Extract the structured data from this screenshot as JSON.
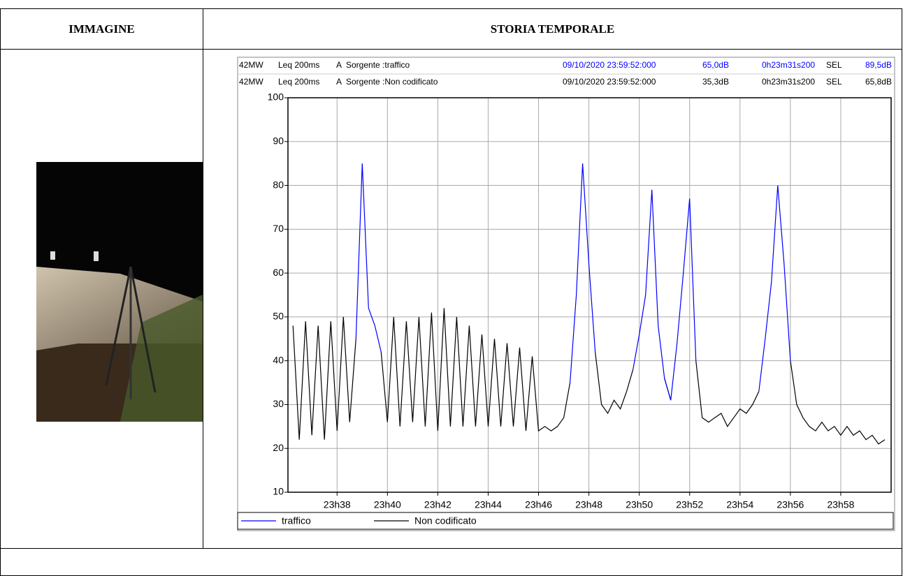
{
  "table": {
    "headers": [
      "IMMAGINE",
      "STORIA TEMPORALE"
    ]
  },
  "chart_data": {
    "type": "line",
    "info": [
      [
        "42MW",
        "Leq 200ms",
        "A",
        "Sorgente :traffico",
        "09/10/2020 23:59:52:000",
        "65,0dB",
        "0h23m31s200",
        "SEL",
        "89,5dB"
      ],
      [
        "42MW",
        "Leq 200ms",
        "A",
        "Sorgente :Non codificato",
        "09/10/2020 23:59:52:000",
        "35,3dB",
        "0h23m31s200",
        "SEL",
        "65,8dB"
      ]
    ],
    "x": [
      36.25,
      36.5,
      36.75,
      37,
      37.25,
      37.5,
      37.75,
      38,
      38.25,
      38.5,
      38.75,
      39,
      39.25,
      39.5,
      39.75,
      40,
      40.25,
      40.5,
      40.75,
      41,
      41.25,
      41.5,
      41.75,
      42,
      42.25,
      42.5,
      42.75,
      43,
      43.25,
      43.5,
      43.75,
      44,
      44.25,
      44.5,
      44.75,
      45,
      45.25,
      45.5,
      45.75,
      46,
      46.25,
      46.5,
      46.75,
      47,
      47.25,
      47.5,
      47.75,
      48,
      48.25,
      48.5,
      48.75,
      49,
      49.25,
      49.5,
      49.75,
      50,
      50.25,
      50.5,
      50.75,
      51,
      51.25,
      51.5,
      51.75,
      52,
      52.25,
      52.5,
      52.75,
      53,
      53.25,
      53.5,
      53.75,
      54,
      54.25,
      54.5,
      54.75,
      55,
      55.25,
      55.5,
      55.75,
      56,
      56.25,
      56.5,
      56.75,
      57,
      57.25,
      57.5,
      57.75,
      58,
      58.25,
      58.5,
      58.75,
      59,
      59.25,
      59.5,
      59.75
    ],
    "series": [
      {
        "name": "traffico",
        "color": "#0000ff",
        "values": [
          null,
          null,
          null,
          null,
          null,
          null,
          null,
          null,
          null,
          null,
          45,
          85,
          52,
          48,
          42,
          null,
          null,
          null,
          null,
          null,
          null,
          null,
          null,
          null,
          null,
          null,
          null,
          null,
          null,
          null,
          null,
          null,
          null,
          null,
          null,
          null,
          null,
          null,
          null,
          null,
          null,
          null,
          null,
          null,
          35,
          55,
          85,
          62,
          42,
          null,
          null,
          null,
          null,
          null,
          38,
          46,
          55,
          79,
          48,
          36,
          31,
          44,
          60,
          77,
          40,
          null,
          null,
          null,
          null,
          null,
          null,
          null,
          null,
          null,
          33,
          45,
          58,
          80,
          62,
          40,
          null,
          null,
          null,
          null,
          null,
          null,
          null,
          null,
          null,
          null,
          null,
          null,
          null,
          null,
          null
        ]
      },
      {
        "name": "Non codificato",
        "color": "#000000",
        "values": [
          48,
          22,
          49,
          23,
          48,
          22,
          49,
          24,
          50,
          26,
          45,
          null,
          null,
          null,
          42,
          26,
          50,
          25,
          49,
          26,
          50,
          25,
          51,
          24,
          52,
          25,
          50,
          25,
          48,
          25,
          46,
          25,
          45,
          25,
          44,
          25,
          43,
          24,
          41,
          24,
          25,
          24,
          25,
          27,
          35,
          null,
          null,
          null,
          42,
          30,
          28,
          31,
          29,
          33,
          38,
          null,
          null,
          null,
          null,
          36,
          31,
          null,
          null,
          null,
          40,
          27,
          26,
          27,
          28,
          25,
          27,
          29,
          28,
          30,
          33,
          null,
          null,
          null,
          null,
          40,
          30,
          27,
          25,
          24,
          26,
          24,
          25,
          23,
          25,
          23,
          24,
          22,
          23,
          21,
          22
        ]
      }
    ],
    "xlim": [
      36.05,
      60.0
    ],
    "ylim": [
      10,
      100
    ],
    "xticks": [
      {
        "value": 38,
        "label": "23h38"
      },
      {
        "value": 40,
        "label": "23h40"
      },
      {
        "value": 42,
        "label": "23h42"
      },
      {
        "value": 44,
        "label": "23h44"
      },
      {
        "value": 46,
        "label": "23h46"
      },
      {
        "value": 48,
        "label": "23h48"
      },
      {
        "value": 50,
        "label": "23h50"
      },
      {
        "value": 52,
        "label": "23h52"
      },
      {
        "value": 54,
        "label": "23h54"
      },
      {
        "value": 56,
        "label": "23h56"
      },
      {
        "value": 58,
        "label": "23h58"
      }
    ],
    "yticks": [
      10,
      20,
      30,
      40,
      50,
      60,
      70,
      80,
      90,
      100
    ],
    "grid": true
  }
}
